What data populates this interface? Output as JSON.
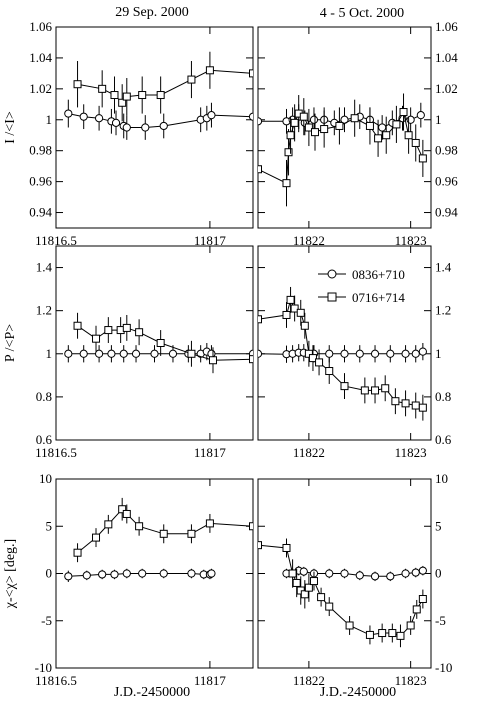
{
  "figure": {
    "left_title": "29 Sep. 2000",
    "right_title": "4 - 5 Oct. 2000",
    "xlabel": "J.D.-2450000"
  },
  "legend": {
    "entries": [
      {
        "label": "0836+710",
        "marker": "circle"
      },
      {
        "label": "0716+714",
        "marker": "square"
      }
    ],
    "placement": "top-right of middle-right panel"
  },
  "chart_data": [
    {
      "type": "scatter",
      "panel": "top-left",
      "ylabel": "I /<I>",
      "xlim": [
        11816.5,
        11817.14
      ],
      "ylim": [
        0.93,
        1.06
      ],
      "xticks": [
        11816.5,
        11817
      ],
      "yticks": [
        0.94,
        0.96,
        0.98,
        1,
        1.02,
        1.04,
        1.06
      ],
      "series": [
        {
          "name": "0836+710",
          "marker": "circle",
          "points": [
            [
              11816.54,
              1.004,
              0.009
            ],
            [
              11816.59,
              1.002,
              0.008
            ],
            [
              11816.64,
              1.001,
              0.008
            ],
            [
              11816.68,
              0.999,
              0.008
            ],
            [
              11816.695,
              0.998,
              0.008
            ],
            [
              11816.72,
              0.996,
              0.008
            ],
            [
              11816.73,
              0.995,
              0.008
            ],
            [
              11816.79,
              0.995,
              0.008
            ],
            [
              11816.85,
              0.996,
              0.008
            ],
            [
              11816.97,
              1.0,
              0.008
            ],
            [
              11816.99,
              1.001,
              0.008
            ],
            [
              11817.005,
              1.003,
              0.008
            ],
            [
              11817.14,
              1.002,
              0.0
            ]
          ]
        },
        {
          "name": "0716+714",
          "marker": "square",
          "points": [
            [
              11816.57,
              1.023,
              0.015
            ],
            [
              11816.65,
              1.02,
              0.012
            ],
            [
              11816.69,
              1.016,
              0.012
            ],
            [
              11816.715,
              1.011,
              0.012
            ],
            [
              11816.73,
              1.015,
              0.012
            ],
            [
              11816.78,
              1.016,
              0.012
            ],
            [
              11816.84,
              1.016,
              0.012
            ],
            [
              11816.94,
              1.026,
              0.012
            ],
            [
              11817.0,
              1.032,
              0.012
            ],
            [
              11817.14,
              1.03,
              0.0
            ]
          ]
        }
      ]
    },
    {
      "type": "scatter",
      "panel": "top-right",
      "ylabel": "",
      "xlim": [
        11821.5,
        11823.2
      ],
      "ylim": [
        0.93,
        1.06
      ],
      "xticks": [
        11822,
        11823
      ],
      "yticks": [
        0.94,
        0.96,
        0.98,
        1,
        1.02,
        1.04,
        1.06
      ],
      "series": [
        {
          "name": "0836+710",
          "marker": "circle",
          "points": [
            [
              11821.5,
              0.999,
              0.0
            ],
            [
              11821.78,
              0.999,
              0.008
            ],
            [
              11821.84,
              1.0,
              0.008
            ],
            [
              11821.9,
              1.002,
              0.008
            ],
            [
              11821.96,
              0.998,
              0.008
            ],
            [
              11822.05,
              1.0,
              0.008
            ],
            [
              11822.15,
              1.0,
              0.008
            ],
            [
              11822.25,
              0.998,
              0.008
            ],
            [
              11822.35,
              1.0,
              0.008
            ],
            [
              11822.5,
              1.002,
              0.008
            ],
            [
              11822.6,
              1.0,
              0.008
            ],
            [
              11822.72,
              0.995,
              0.008
            ],
            [
              11822.82,
              0.998,
              0.008
            ],
            [
              11822.92,
              1.001,
              0.008
            ],
            [
              11823.0,
              1.0,
              0.008
            ],
            [
              11823.1,
              1.003,
              0.008
            ]
          ]
        },
        {
          "name": "0716+714",
          "marker": "square",
          "points": [
            [
              11821.5,
              0.968,
              0.0
            ],
            [
              11821.78,
              0.959,
              0.015
            ],
            [
              11821.8,
              0.979,
              0.015
            ],
            [
              11821.82,
              0.99,
              0.012
            ],
            [
              11821.86,
              0.998,
              0.012
            ],
            [
              11821.9,
              1.004,
              0.012
            ],
            [
              11821.95,
              1.002,
              0.012
            ],
            [
              11822.0,
              0.995,
              0.012
            ],
            [
              11822.06,
              0.992,
              0.012
            ],
            [
              11822.15,
              0.994,
              0.012
            ],
            [
              11822.3,
              0.996,
              0.012
            ],
            [
              11822.45,
              1.001,
              0.012
            ],
            [
              11822.6,
              0.996,
              0.012
            ],
            [
              11822.68,
              0.988,
              0.012
            ],
            [
              11822.76,
              0.99,
              0.012
            ],
            [
              11822.86,
              0.997,
              0.012
            ],
            [
              11822.93,
              1.005,
              0.012
            ],
            [
              11822.98,
              0.99,
              0.012
            ],
            [
              11823.05,
              0.985,
              0.012
            ],
            [
              11823.12,
              0.975,
              0.012
            ]
          ]
        }
      ]
    },
    {
      "type": "scatter",
      "panel": "middle-left",
      "ylabel": "P /<P>",
      "xlim": [
        11816.5,
        11817.14
      ],
      "ylim": [
        0.6,
        1.5
      ],
      "xticks": [
        11816.5,
        11817
      ],
      "yticks": [
        0.6,
        0.8,
        1,
        1.2,
        1.4
      ],
      "series": [
        {
          "name": "0836+710",
          "marker": "circle",
          "points": [
            [
              11816.54,
              1.0,
              0.04
            ],
            [
              11816.59,
              1.0,
              0.04
            ],
            [
              11816.64,
              1.0,
              0.04
            ],
            [
              11816.68,
              1.0,
              0.04
            ],
            [
              11816.72,
              1.0,
              0.04
            ],
            [
              11816.76,
              1.0,
              0.04
            ],
            [
              11816.82,
              1.0,
              0.04
            ],
            [
              11816.88,
              1.0,
              0.04
            ],
            [
              11816.93,
              1.0,
              0.04
            ],
            [
              11816.97,
              1.0,
              0.04
            ],
            [
              11816.99,
              1.01,
              0.04
            ],
            [
              11817.005,
              1.0,
              0.04
            ],
            [
              11817.14,
              1.0,
              0.0
            ]
          ]
        },
        {
          "name": "0716+714",
          "marker": "square",
          "points": [
            [
              11816.57,
              1.13,
              0.06
            ],
            [
              11816.63,
              1.07,
              0.06
            ],
            [
              11816.67,
              1.11,
              0.06
            ],
            [
              11816.71,
              1.11,
              0.06
            ],
            [
              11816.73,
              1.12,
              0.06
            ],
            [
              11816.77,
              1.1,
              0.06
            ],
            [
              11816.84,
              1.05,
              0.06
            ],
            [
              11816.94,
              1.0,
              0.06
            ],
            [
              11817.01,
              0.97,
              0.06
            ],
            [
              11817.14,
              0.975,
              0.0
            ]
          ]
        }
      ]
    },
    {
      "type": "scatter",
      "panel": "middle-right",
      "ylabel": "",
      "xlim": [
        11821.5,
        11823.2
      ],
      "ylim": [
        0.6,
        1.5
      ],
      "xticks": [
        11822,
        11823
      ],
      "yticks": [
        0.6,
        0.8,
        1,
        1.2,
        1.4
      ],
      "series": [
        {
          "name": "0836+710",
          "marker": "circle",
          "points": [
            [
              11821.5,
              1.0,
              0.0
            ],
            [
              11821.78,
              0.998,
              0.04
            ],
            [
              11821.84,
              1.0,
              0.04
            ],
            [
              11821.9,
              1.005,
              0.04
            ],
            [
              11821.95,
              1.005,
              0.04
            ],
            [
              11822.05,
              1.0,
              0.04
            ],
            [
              11822.2,
              1.0,
              0.04
            ],
            [
              11822.35,
              1.0,
              0.04
            ],
            [
              11822.5,
              1.0,
              0.04
            ],
            [
              11822.65,
              1.0,
              0.04
            ],
            [
              11822.8,
              1.0,
              0.04
            ],
            [
              11822.95,
              1.0,
              0.04
            ],
            [
              11823.05,
              1.0,
              0.04
            ],
            [
              11823.12,
              1.01,
              0.04
            ]
          ]
        },
        {
          "name": "0716+714",
          "marker": "square",
          "points": [
            [
              11821.5,
              1.16,
              0.0
            ],
            [
              11821.78,
              1.18,
              0.06
            ],
            [
              11821.82,
              1.25,
              0.06
            ],
            [
              11821.86,
              1.21,
              0.06
            ],
            [
              11821.92,
              1.19,
              0.06
            ],
            [
              11821.96,
              1.13,
              0.06
            ],
            [
              11822.0,
              1.0,
              0.06
            ],
            [
              11822.04,
              0.98,
              0.06
            ],
            [
              11822.1,
              0.96,
              0.06
            ],
            [
              11822.2,
              0.92,
              0.06
            ],
            [
              11822.35,
              0.85,
              0.06
            ],
            [
              11822.55,
              0.83,
              0.06
            ],
            [
              11822.65,
              0.83,
              0.06
            ],
            [
              11822.75,
              0.84,
              0.06
            ],
            [
              11822.85,
              0.78,
              0.06
            ],
            [
              11822.95,
              0.77,
              0.06
            ],
            [
              11823.05,
              0.76,
              0.06
            ],
            [
              11823.12,
              0.75,
              0.06
            ]
          ]
        }
      ]
    },
    {
      "type": "scatter",
      "panel": "bottom-left",
      "ylabel": "χ-<χ> [deg.]",
      "xlim": [
        11816.5,
        11817.14
      ],
      "ylim": [
        -10,
        10
      ],
      "xticks": [
        11816.5,
        11817
      ],
      "yticks": [
        -10,
        -5,
        0,
        5,
        10
      ],
      "series": [
        {
          "name": "0836+710",
          "marker": "circle",
          "points": [
            [
              11816.54,
              -0.3,
              0.6
            ],
            [
              11816.6,
              -0.2,
              0.5
            ],
            [
              11816.65,
              -0.1,
              0.5
            ],
            [
              11816.69,
              -0.1,
              0.5
            ],
            [
              11816.73,
              0.0,
              0.5
            ],
            [
              11816.78,
              0.0,
              0.5
            ],
            [
              11816.85,
              0.0,
              0.5
            ],
            [
              11816.94,
              0.0,
              0.5
            ],
            [
              11816.98,
              -0.1,
              0.5
            ],
            [
              11817.0,
              -0.1,
              0.5
            ],
            [
              11817.005,
              0.0,
              0.5
            ]
          ]
        },
        {
          "name": "0716+714",
          "marker": "square",
          "points": [
            [
              11816.57,
              2.2,
              1.0
            ],
            [
              11816.63,
              3.8,
              1.0
            ],
            [
              11816.67,
              5.2,
              1.0
            ],
            [
              11816.715,
              6.8,
              1.2
            ],
            [
              11816.73,
              6.3,
              1.0
            ],
            [
              11816.77,
              5.0,
              1.0
            ],
            [
              11816.85,
              4.2,
              1.0
            ],
            [
              11816.94,
              4.2,
              1.0
            ],
            [
              11817.0,
              5.3,
              1.0
            ],
            [
              11817.14,
              5.0,
              0.0
            ]
          ]
        }
      ]
    },
    {
      "type": "scatter",
      "panel": "bottom-right",
      "ylabel": "",
      "xlim": [
        11821.5,
        11823.2
      ],
      "ylim": [
        -10,
        10
      ],
      "xticks": [
        11822,
        11823
      ],
      "yticks": [
        -10,
        -5,
        0,
        5,
        10
      ],
      "series": [
        {
          "name": "0836+710",
          "marker": "circle",
          "points": [
            [
              11821.78,
              0.0,
              0.5
            ],
            [
              11821.84,
              0.0,
              0.5
            ],
            [
              11821.9,
              0.3,
              0.5
            ],
            [
              11821.95,
              0.2,
              0.5
            ],
            [
              11822.05,
              0.0,
              0.5
            ],
            [
              11822.2,
              0.0,
              0.5
            ],
            [
              11822.35,
              0.0,
              0.5
            ],
            [
              11822.5,
              -0.2,
              0.5
            ],
            [
              11822.65,
              -0.3,
              0.5
            ],
            [
              11822.8,
              -0.3,
              0.5
            ],
            [
              11822.95,
              0.0,
              0.5
            ],
            [
              11823.05,
              0.1,
              0.5
            ],
            [
              11823.12,
              0.3,
              0.5
            ]
          ]
        },
        {
          "name": "0716+714",
          "marker": "square",
          "points": [
            [
              11821.5,
              3.0,
              0.0
            ],
            [
              11821.78,
              2.7,
              1.0
            ],
            [
              11821.84,
              0.0,
              1.5
            ],
            [
              11821.88,
              -1.0,
              1.5
            ],
            [
              11821.92,
              -1.8,
              1.5
            ],
            [
              11821.96,
              -2.2,
              1.5
            ],
            [
              11822.0,
              -1.5,
              1.5
            ],
            [
              11822.05,
              -0.8,
              1.0
            ],
            [
              11822.12,
              -2.5,
              1.0
            ],
            [
              11822.2,
              -3.5,
              1.0
            ],
            [
              11822.4,
              -5.5,
              1.0
            ],
            [
              11822.6,
              -6.5,
              1.0
            ],
            [
              11822.72,
              -6.3,
              1.0
            ],
            [
              11822.82,
              -6.3,
              1.0
            ],
            [
              11822.9,
              -6.6,
              1.2
            ],
            [
              11823.0,
              -5.5,
              1.0
            ],
            [
              11823.06,
              -3.8,
              1.0
            ],
            [
              11823.12,
              -2.7,
              1.0
            ]
          ]
        }
      ]
    }
  ]
}
